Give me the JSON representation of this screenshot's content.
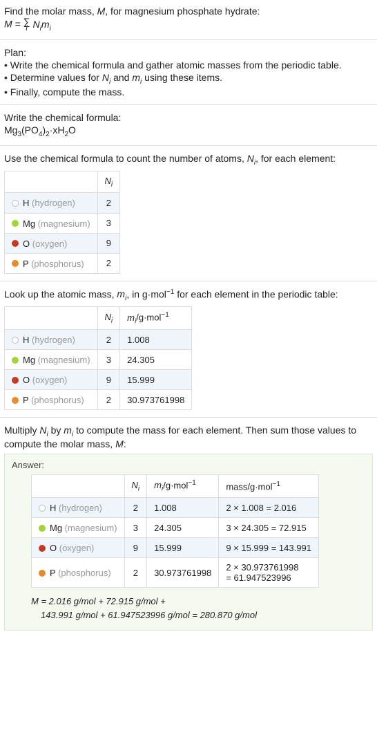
{
  "intro": {
    "line1_a": "Find the molar mass, ",
    "line1_M": "M",
    "line1_b": ", for magnesium phosphate hydrate:",
    "eqL": "M = ",
    "eqR_a": " N",
    "eqR_b": "m",
    "sub_i": "i"
  },
  "plan": {
    "title": "Plan:",
    "b1_a": "• Write the chemical formula and gather atomic masses from the periodic table.",
    "b2_a": "• Determine values for ",
    "b2_Ni": "N",
    "b2_b": " and ",
    "b2_mi": "m",
    "b2_c": " using these items.",
    "b3": "• Finally, compute the mass."
  },
  "chemformula": {
    "title": "Write the chemical formula:",
    "f_a": "Mg",
    "f_3": "3",
    "f_b": "(PO",
    "f_4": "4",
    "f_c": ")",
    "f_2": "2",
    "f_d": "·xH",
    "f_2b": "2",
    "f_e": "O"
  },
  "countline": {
    "a": "Use the chemical formula to count the number of atoms, ",
    "N": "N",
    "sub": "i",
    "b": ", for each element:"
  },
  "table1": {
    "header_Ni": "N",
    "rows": [
      {
        "dot": "#ffffff",
        "border": "#bbb",
        "sym": "H",
        "name": "(hydrogen)",
        "n": "2",
        "stripe": true
      },
      {
        "dot": "#9fd63a",
        "border": "#9fd63a",
        "sym": "Mg",
        "name": "(magnesium)",
        "n": "3",
        "stripe": false
      },
      {
        "dot": "#c23b22",
        "border": "#c23b22",
        "sym": "O",
        "name": "(oxygen)",
        "n": "9",
        "stripe": true
      },
      {
        "dot": "#e78b2f",
        "border": "#e78b2f",
        "sym": "P",
        "name": "(phosphorus)",
        "n": "2",
        "stripe": false
      }
    ]
  },
  "lookupline": {
    "a": "Look up the atomic mass, ",
    "m": "m",
    "sub": "i",
    "b": ", in g·mol",
    "exp": "−1",
    "c": " for each element in the periodic table:"
  },
  "table2": {
    "header_Ni": "N",
    "header_mi_a": "m",
    "header_mi_b": "/g·mol",
    "header_mi_exp": "−1",
    "rows": [
      {
        "dot": "#ffffff",
        "border": "#bbb",
        "sym": "H",
        "name": "(hydrogen)",
        "n": "2",
        "m": "1.008",
        "stripe": true
      },
      {
        "dot": "#9fd63a",
        "border": "#9fd63a",
        "sym": "Mg",
        "name": "(magnesium)",
        "n": "3",
        "m": "24.305",
        "stripe": false
      },
      {
        "dot": "#c23b22",
        "border": "#c23b22",
        "sym": "O",
        "name": "(oxygen)",
        "n": "9",
        "m": "15.999",
        "stripe": true
      },
      {
        "dot": "#e78b2f",
        "border": "#e78b2f",
        "sym": "P",
        "name": "(phosphorus)",
        "n": "2",
        "m": "30.973761998",
        "stripe": false
      }
    ]
  },
  "multiplyline": {
    "a": "Multiply ",
    "N": "N",
    "b": " by ",
    "m": "m",
    "c": " to compute the mass for each element. Then sum those values to compute the molar mass, ",
    "M": "M",
    "d": ":"
  },
  "answer": {
    "title": "Answer:",
    "header_Ni": "N",
    "header_mi_a": "m",
    "header_mi_b": "/g·mol",
    "header_mi_exp": "−1",
    "header_mass_a": "mass/g·mol",
    "header_mass_exp": "−1",
    "rows": [
      {
        "dot": "#ffffff",
        "border": "#bbb",
        "sym": "H",
        "name": "(hydrogen)",
        "n": "2",
        "m": "1.008",
        "mass": "2 × 1.008 = 2.016",
        "stripe": true
      },
      {
        "dot": "#9fd63a",
        "border": "#9fd63a",
        "sym": "Mg",
        "name": "(magnesium)",
        "n": "3",
        "m": "24.305",
        "mass": "3 × 24.305 = 72.915",
        "stripe": false
      },
      {
        "dot": "#c23b22",
        "border": "#c23b22",
        "sym": "O",
        "name": "(oxygen)",
        "n": "9",
        "m": "15.999",
        "mass": "9 × 15.999 = 143.991",
        "stripe": true
      },
      {
        "dot": "#e78b2f",
        "border": "#e78b2f",
        "sym": "P",
        "name": "(phosphorus)",
        "n": "2",
        "m": "30.973761998",
        "mass_a": "2 × 30.973761998",
        "mass_b": "= 61.947523996",
        "stripe": false,
        "multiline": true
      }
    ],
    "eq1": "M = 2.016 g/mol + 72.915 g/mol +",
    "eq2": "143.991 g/mol + 61.947523996 g/mol = 280.870 g/mol"
  }
}
